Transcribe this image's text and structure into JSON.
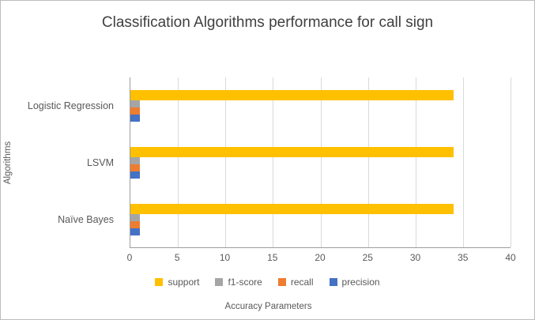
{
  "chart_data": {
    "type": "bar",
    "orientation": "horizontal",
    "title": "Classification Algorithms performance for call sign",
    "xlabel": "Accuracy Parameters",
    "ylabel": "Algorithms",
    "categories": [
      "Logistic Regression",
      "LSVM",
      "Naïve Bayes"
    ],
    "series": [
      {
        "name": "support",
        "color": "#FFC000",
        "values": [
          34,
          34,
          34
        ]
      },
      {
        "name": "f1-score",
        "color": "#A5A5A5",
        "values": [
          1,
          1,
          1
        ]
      },
      {
        "name": "recall",
        "color": "#ED7D31",
        "values": [
          1,
          1,
          1
        ]
      },
      {
        "name": "precision",
        "color": "#4472C4",
        "values": [
          1,
          1,
          1
        ]
      }
    ],
    "xlim": [
      0,
      40
    ],
    "x_ticks": [
      0,
      5,
      10,
      15,
      20,
      25,
      30,
      35,
      40
    ],
    "grid": "vertical",
    "legend_position": "bottom",
    "colors": {
      "title_text": "#404040",
      "axis_text": "#595959",
      "axis_line": "#9d9d9d",
      "gridline": "#d9d9d9"
    }
  }
}
